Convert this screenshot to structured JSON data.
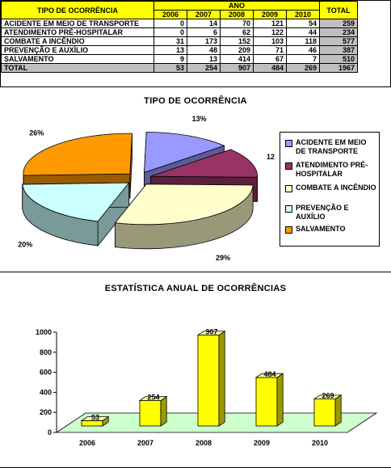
{
  "table": {
    "header_label": "TIPO DE OCORRÊNCIA",
    "group_label": "ANO",
    "total_label": "TOTAL",
    "years": [
      "2006",
      "2007",
      "2008",
      "2009",
      "2010"
    ],
    "rows": [
      {
        "label": "ACIDENTE EM MEIO DE TRANSPORTE",
        "values": [
          "0",
          "14",
          "70",
          "121",
          "54"
        ],
        "total": "259"
      },
      {
        "label": "ATENDIMENTO PRÉ-HOSPITALAR",
        "values": [
          "0",
          "6",
          "62",
          "122",
          "44"
        ],
        "total": "234"
      },
      {
        "label": "COMBATE A INCÊNDIO",
        "values": [
          "31",
          "173",
          "152",
          "103",
          "118"
        ],
        "total": "577"
      },
      {
        "label": "PREVENÇÃO E AUXÍLIO",
        "values": [
          "13",
          "48",
          "209",
          "71",
          "46"
        ],
        "total": "387"
      },
      {
        "label": "SALVAMENTO",
        "values": [
          "9",
          "13",
          "414",
          "67",
          "7"
        ],
        "total": "510"
      }
    ],
    "total_row": {
      "label": "TOTAL",
      "values": [
        "53",
        "254",
        "907",
        "484",
        "269"
      ],
      "total": "1967"
    }
  },
  "chart_data": [
    {
      "type": "pie",
      "title": "TIPO DE OCORRÊNCIA",
      "labels": [
        "ACIDENTE EM MEIO DE TRANSPORTE",
        "ATENDIMENTO PRÉ-HOSPITALAR",
        "COMBATE A INCÊNDIO",
        "PREVENÇÃO E AUXÍLIO",
        "SALVAMENTO"
      ],
      "values": [
        259,
        234,
        577,
        387,
        510
      ],
      "percent_labels": [
        "13%",
        "12%",
        "29%",
        "20%",
        "26%"
      ],
      "colors": [
        "#9999ff",
        "#993366",
        "#ffffcc",
        "#ccffff",
        "#ff9900"
      ],
      "side_colors": [
        "#5c5c99",
        "#5c1f3d",
        "#99997a",
        "#7a9999",
        "#995c00"
      ],
      "legend_position": "right",
      "three_d": true,
      "exploded": true
    },
    {
      "type": "bar",
      "title": "ESTATÍSTICA ANUAL DE OCORRÊNCIAS",
      "categories": [
        "2006",
        "2007",
        "2008",
        "2009",
        "2010"
      ],
      "values": [
        53,
        254,
        907,
        484,
        269
      ],
      "data_labels": [
        "53",
        "254",
        "907",
        "484",
        "269"
      ],
      "ylim": [
        0,
        1000
      ],
      "yticks": [
        "0",
        "200",
        "400",
        "600",
        "800",
        "1000"
      ],
      "bar_color": "#ffff00",
      "floor_color": "#ccffcc",
      "three_d": true,
      "grid": false
    }
  ]
}
